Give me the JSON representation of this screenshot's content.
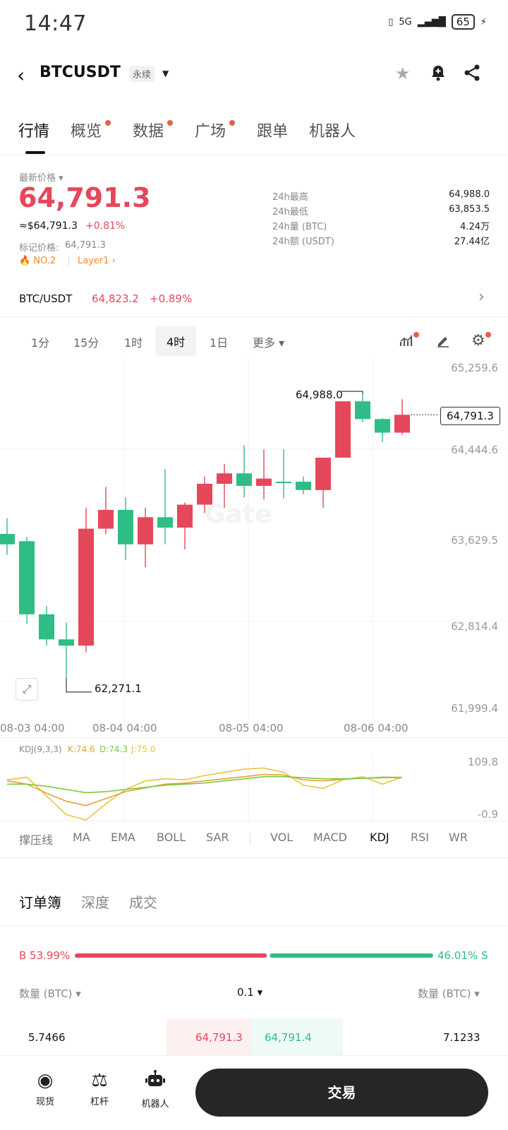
{
  "status_bar": {
    "time": "14:47",
    "battery": "65",
    "signal_label": "5G"
  },
  "header": {
    "back_icon": "chevron-left-icon",
    "pair": "BTCUSDT",
    "tag": "永续",
    "icons": [
      "star-icon",
      "bell-plus-icon",
      "share-icon"
    ]
  },
  "tabs": [
    {
      "label": "行情",
      "dot": false
    },
    {
      "label": "概览",
      "dot": true
    },
    {
      "label": "数据",
      "dot": true
    },
    {
      "label": "广场",
      "dot": true
    },
    {
      "label": "跟单",
      "dot": false
    },
    {
      "label": "机器人",
      "dot": false
    }
  ],
  "price": {
    "label": "最新价格",
    "last": "64,791.3",
    "usd": "≈$64,791.3",
    "change": "+0.81%",
    "mark_label": "标记价格:",
    "mark_value": "64,791.3",
    "rank": "NO.2",
    "layer": "Layer1"
  },
  "stats": [
    {
      "label": "24h最高",
      "value": "64,988.0"
    },
    {
      "label": "24h最低",
      "value": "63,853.5"
    },
    {
      "label": "24h量 (BTC)",
      "value": "4.24万"
    },
    {
      "label": "24h额 (USDT)",
      "value": "27.44亿"
    }
  ],
  "spot": {
    "pair": "BTC/USDT",
    "price": "64,823.2",
    "change": "+0.89%"
  },
  "timeframes": [
    "1分",
    "15分",
    "1时",
    "4时",
    "1日",
    "更多"
  ],
  "active_timeframe": "4时",
  "chart_data": {
    "type": "candlestick",
    "y_ticks": [
      "65,259.6",
      "64,444.6",
      "63,629.5",
      "62,814.4",
      "61,999.4"
    ],
    "ylim": [
      61999.4,
      65259.6
    ],
    "x_ticks": [
      "08-03 04:00",
      "08-04 04:00",
      "08-05 04:00",
      "08-06 04:00"
    ],
    "high_label": "64,988.0",
    "low_label": "62,271.1",
    "last_label": "64,791.3",
    "candles": [
      {
        "o": 63650,
        "c": 63550,
        "h": 63800,
        "l": 63450
      },
      {
        "o": 63580,
        "c": 62880,
        "h": 63620,
        "l": 62790
      },
      {
        "o": 62880,
        "c": 62640,
        "h": 62960,
        "l": 62580
      },
      {
        "o": 62640,
        "c": 62580,
        "h": 62800,
        "l": 62271
      },
      {
        "o": 62580,
        "c": 63700,
        "h": 63900,
        "l": 62520
      },
      {
        "o": 63700,
        "c": 63880,
        "h": 64100,
        "l": 63650
      },
      {
        "o": 63880,
        "c": 63550,
        "h": 64000,
        "l": 63400
      },
      {
        "o": 63550,
        "c": 63810,
        "h": 63900,
        "l": 63330
      },
      {
        "o": 63810,
        "c": 63710,
        "h": 64270,
        "l": 63550
      },
      {
        "o": 63710,
        "c": 63930,
        "h": 63950,
        "l": 63500
      },
      {
        "o": 63930,
        "c": 64130,
        "h": 64200,
        "l": 63850
      },
      {
        "o": 64130,
        "c": 64230,
        "h": 64320,
        "l": 63900
      },
      {
        "o": 64230,
        "c": 64110,
        "h": 64500,
        "l": 64000
      },
      {
        "o": 64110,
        "c": 64180,
        "h": 64460,
        "l": 63980
      },
      {
        "o": 64150,
        "c": 64140,
        "h": 64460,
        "l": 63990
      },
      {
        "o": 64150,
        "c": 64070,
        "h": 64200,
        "l": 64030
      },
      {
        "o": 64070,
        "c": 64380,
        "h": 64380,
        "l": 63900
      },
      {
        "o": 64380,
        "c": 64920,
        "h": 64920,
        "l": 64380
      },
      {
        "o": 64920,
        "c": 64750,
        "h": 64988,
        "l": 64720
      },
      {
        "o": 64750,
        "c": 64620,
        "h": 64760,
        "l": 64530
      },
      {
        "o": 64620,
        "c": 64791,
        "h": 64940,
        "l": 64600
      }
    ]
  },
  "kdj": {
    "label": "KDJ(9,3,3)",
    "k": "K:74.6",
    "d": "D:74.3",
    "j": "J:75.0",
    "top": "109.8",
    "bottom": "-0.9",
    "k_values": [
      68,
      62,
      45,
      30,
      22,
      35,
      48,
      55,
      62,
      64,
      68,
      72,
      76,
      80,
      79,
      70,
      68,
      71,
      73,
      75,
      74.6
    ],
    "d_values": [
      62,
      62,
      58,
      52,
      46,
      48,
      52,
      56,
      60,
      62,
      64,
      68,
      72,
      76,
      76,
      74,
      72,
      72,
      73,
      74,
      74.3
    ],
    "j_values": [
      70,
      75,
      40,
      5,
      -5,
      25,
      52,
      68,
      72,
      70,
      78,
      84,
      90,
      92,
      84,
      60,
      54,
      70,
      76,
      62,
      75
    ]
  },
  "indicators": [
    "撑压线",
    "MA",
    "EMA",
    "BOLL",
    "SAR",
    "VOL",
    "MACD",
    "KDJ",
    "RSI",
    "WR"
  ],
  "active_indicator": "KDJ",
  "orderbook": {
    "tabs": [
      "订单簿",
      "深度",
      "成交"
    ],
    "buy_pct": "B 53.99%",
    "sell_pct": "46.01% S",
    "buy_ratio": 53.99,
    "qty_left": "数量 (BTC)",
    "step": "0.1",
    "qty_right": "数量 (BTC)",
    "rows": [
      {
        "bid_qty": "5.7466",
        "bid": "64,791.3",
        "ask": "64,791.4",
        "ask_qty": "7.1233"
      }
    ]
  },
  "bottom_nav": [
    {
      "label": "现货",
      "icon": "spot-icon"
    },
    {
      "label": "杠杆",
      "icon": "leverage-icon"
    },
    {
      "label": "机器人",
      "icon": "robot-icon"
    }
  ],
  "trade_button": "交易"
}
